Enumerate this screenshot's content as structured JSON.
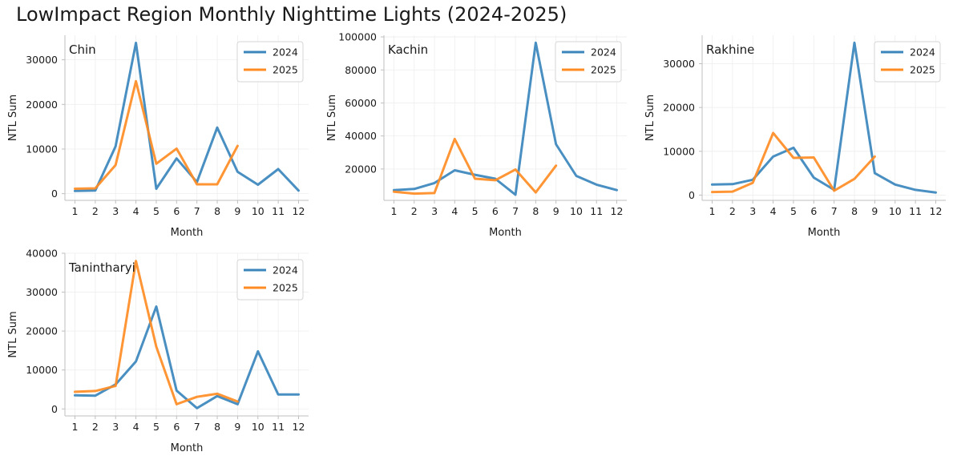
{
  "title": "LowImpact Region Monthly Nighttime Lights (2024-2025)",
  "colors": {
    "2024": "#3a86bc",
    "2025": "#ff8c23",
    "axis": "#bfbfbf",
    "grid": "#eeeeee",
    "text": "#1a1a1a"
  },
  "chart_data": [
    {
      "type": "line",
      "title": "Chin",
      "xlabel": "Month",
      "ylabel": "NTL Sum",
      "x_ticks": [
        1,
        2,
        3,
        4,
        5,
        6,
        7,
        8,
        9,
        10,
        11,
        12
      ],
      "ylim": [
        -1500,
        35500
      ],
      "y_ticks": [
        0,
        10000,
        20000,
        30000
      ],
      "y_tick_labels": [
        "0",
        "10000",
        "20000",
        "30000"
      ],
      "legend": "top-right",
      "series": [
        {
          "name": "2024",
          "x": [
            1,
            2,
            3,
            4,
            5,
            6,
            7,
            8,
            9,
            10,
            11,
            12
          ],
          "values": [
            600,
            700,
            10600,
            33800,
            1100,
            7900,
            2600,
            14800,
            4900,
            2000,
            5500,
            700
          ]
        },
        {
          "name": "2025",
          "x": [
            1,
            2,
            3,
            4,
            5,
            6,
            7,
            8,
            9
          ],
          "values": [
            1100,
            1200,
            6400,
            25200,
            6700,
            10100,
            2100,
            2100,
            10700
          ]
        }
      ]
    },
    {
      "type": "line",
      "title": "Kachin",
      "xlabel": "Month",
      "ylabel": "NTL Sum",
      "x_ticks": [
        1,
        2,
        3,
        4,
        5,
        6,
        7,
        8,
        9,
        10,
        11,
        12
      ],
      "ylim": [
        1000,
        101000
      ],
      "y_ticks": [
        20000,
        40000,
        60000,
        80000,
        100000
      ],
      "y_tick_labels": [
        "20000",
        "40000",
        "60000",
        "80000",
        "100000"
      ],
      "legend": "top-right",
      "series": [
        {
          "name": "2024",
          "x": [
            1,
            2,
            3,
            4,
            5,
            6,
            7,
            8,
            9,
            10,
            11,
            12
          ],
          "values": [
            7200,
            7900,
            11500,
            19200,
            16500,
            14100,
            4400,
            96500,
            35000,
            15800,
            10500,
            7200
          ]
        },
        {
          "name": "2025",
          "x": [
            1,
            2,
            3,
            4,
            5,
            6,
            7,
            8,
            9
          ],
          "values": [
            6200,
            5100,
            5400,
            38200,
            14100,
            13200,
            19700,
            5800,
            22000
          ]
        }
      ]
    },
    {
      "type": "line",
      "title": "Rakhine",
      "xlabel": "Month",
      "ylabel": "NTL Sum",
      "x_ticks": [
        1,
        2,
        3,
        4,
        5,
        6,
        7,
        8,
        9,
        10,
        11,
        12
      ],
      "ylim": [
        -1200,
        36500
      ],
      "y_ticks": [
        0,
        10000,
        20000,
        30000
      ],
      "y_tick_labels": [
        "0",
        "10000",
        "20000",
        "30000"
      ],
      "legend": "top-right",
      "series": [
        {
          "name": "2024",
          "x": [
            1,
            2,
            3,
            4,
            5,
            6,
            7,
            8,
            9,
            10,
            11,
            12
          ],
          "values": [
            2400,
            2500,
            3500,
            8800,
            10800,
            4000,
            1200,
            34800,
            5000,
            2400,
            1200,
            600
          ]
        },
        {
          "name": "2025",
          "x": [
            1,
            2,
            3,
            4,
            5,
            6,
            7,
            8,
            9
          ],
          "values": [
            700,
            800,
            2800,
            14200,
            8500,
            8600,
            1000,
            3700,
            8800
          ]
        }
      ]
    },
    {
      "type": "line",
      "title": "Tanintharyi",
      "xlabel": "Month",
      "ylabel": "NTL Sum",
      "x_ticks": [
        1,
        2,
        3,
        4,
        5,
        6,
        7,
        8,
        9,
        10,
        11,
        12
      ],
      "ylim": [
        -1800,
        40000
      ],
      "y_ticks": [
        0,
        10000,
        20000,
        30000,
        40000
      ],
      "y_tick_labels": [
        "0",
        "10000",
        "20000",
        "30000",
        "40000"
      ],
      "legend": "top-right",
      "series": [
        {
          "name": "2024",
          "x": [
            1,
            2,
            3,
            4,
            5,
            6,
            7,
            8,
            9,
            10,
            11,
            12
          ],
          "values": [
            3500,
            3400,
            6300,
            12200,
            26300,
            4700,
            200,
            3300,
            1200,
            14800,
            3700,
            3700
          ]
        },
        {
          "name": "2025",
          "x": [
            1,
            2,
            3,
            4,
            5,
            6,
            7,
            8,
            9
          ],
          "values": [
            4400,
            4600,
            5900,
            38000,
            16000,
            1200,
            3100,
            3900,
            1900
          ]
        }
      ]
    }
  ]
}
